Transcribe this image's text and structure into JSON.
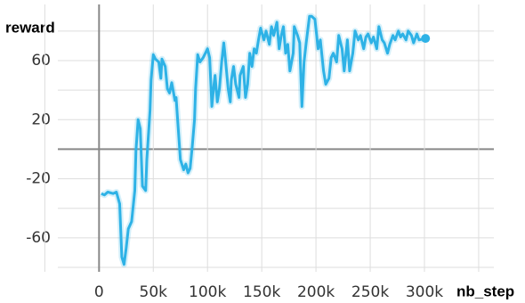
{
  "chart_data": {
    "type": "line",
    "y_label": "reward",
    "x_label": "nb_step",
    "xlim": [
      -38000,
      364000
    ],
    "ylim": [
      -83,
      98
    ],
    "xticks": [
      0,
      {
        "value": 50000,
        "label": "50k"
      },
      {
        "value": 100000,
        "label": "100k"
      },
      {
        "value": 150000,
        "label": "150k"
      },
      {
        "value": 200000,
        "label": "200k"
      },
      {
        "value": 250000,
        "label": "250k"
      },
      {
        "value": 300000,
        "label": "300k"
      }
    ],
    "yticks": [
      -60,
      -20,
      20,
      60
    ],
    "x_grid": [
      -50000,
      350000
    ],
    "y_grid": [
      -80,
      -40,
      0,
      40,
      80
    ],
    "grid": true,
    "series": [
      {
        "color": "#2eb2e6",
        "x": [
          2000,
          5000,
          8000,
          13000,
          16000,
          19000,
          21000,
          23000,
          25000,
          27000,
          30000,
          33000,
          34000,
          36000,
          38000,
          40000,
          43000,
          44000,
          47000,
          48000,
          50000,
          52000,
          55000,
          57000,
          58000,
          61000,
          63000,
          65000,
          67000,
          70000,
          71000,
          73000,
          75000,
          78000,
          80000,
          82000,
          84000,
          86000,
          88000,
          89000,
          91000,
          93000,
          96000,
          98000,
          100000,
          102000,
          104000,
          106000,
          107000,
          109000,
          111000,
          113000,
          115000,
          116000,
          119000,
          121000,
          122000,
          124000,
          126000,
          129000,
          130000,
          133000,
          135000,
          137000,
          139000,
          141000,
          143000,
          145000,
          147000,
          149000,
          152000,
          154000,
          157000,
          159000,
          161000,
          164000,
          166000,
          168000,
          170000,
          172000,
          174000,
          176000,
          179000,
          180000,
          183000,
          185000,
          187000,
          189000,
          191000,
          194000,
          196000,
          199000,
          202000,
          204000,
          207000,
          209000,
          212000,
          214000,
          216000,
          219000,
          221000,
          224000,
          226000,
          229000,
          231000,
          234000,
          236000,
          239000,
          241000,
          244000,
          246000,
          248000,
          251000,
          253000,
          256000,
          258000,
          261000,
          263000,
          266000,
          268000,
          271000,
          273000,
          276000,
          278000,
          280000,
          283000,
          285000,
          288000,
          290000,
          293000,
          295000,
          301000
        ],
        "values": [
          -30,
          -31,
          -29,
          -30,
          -29,
          -37,
          -73,
          -78,
          -67,
          -54,
          -49,
          -28,
          -1,
          20,
          14,
          -25,
          -28,
          -7,
          26,
          47,
          64,
          61,
          59,
          48,
          61,
          56,
          41,
          38,
          45,
          33,
          35,
          14,
          -7,
          -14,
          -10,
          -16,
          -13,
          2,
          20,
          41,
          64,
          59,
          62,
          65,
          68,
          62,
          29,
          44,
          50,
          32,
          41,
          59,
          72,
          65,
          41,
          32,
          47,
          56,
          44,
          35,
          50,
          56,
          35,
          44,
          65,
          56,
          68,
          65,
          74,
          82,
          74,
          80,
          71,
          83,
          77,
          86,
          68,
          77,
          83,
          65,
          71,
          53,
          65,
          83,
          77,
          72,
          29,
          59,
          72,
          90,
          90,
          88,
          68,
          74,
          53,
          44,
          48,
          62,
          65,
          59,
          77,
          68,
          53,
          74,
          53,
          65,
          80,
          74,
          77,
          68,
          76,
          78,
          72,
          76,
          68,
          83,
          74,
          72,
          65,
          71,
          77,
          74,
          80,
          76,
          78,
          74,
          80,
          77,
          72,
          78,
          74,
          75
        ]
      }
    ]
  }
}
